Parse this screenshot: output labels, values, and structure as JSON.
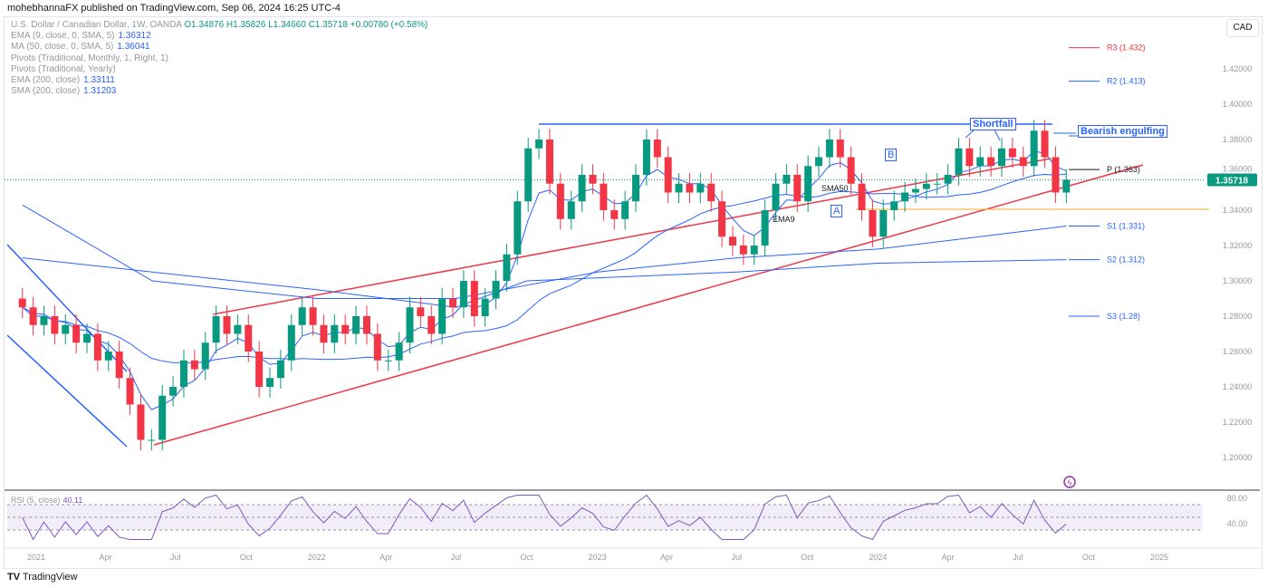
{
  "header": "mohebhannaFX published on TradingView.com, Sep 06, 2024 16:25 UTC-4",
  "legend": {
    "symbol": "U.S. Dollar / Canadian Dollar, 1W, OANDA",
    "ohlc": {
      "o": "O1.34876",
      "h": "H1.35826",
      "l": "L1.34660",
      "c": "C1.35718",
      "chg": "+0.00780 (+0.58%)"
    },
    "indicators": [
      {
        "name": "EMA (9, close, 0, SMA, 5)",
        "value": "1.36312"
      },
      {
        "name": "MA (50, close, 0, SMA, 5)",
        "value": "1.36041"
      },
      {
        "name": "Pivots (Traditional, Monthly, 1, Right, 1)",
        "value": ""
      },
      {
        "name": "Pivots (Traditional, Yearly)",
        "value": ""
      },
      {
        "name": "EMA (200, close)",
        "value": "1.33111"
      },
      {
        "name": "SMA (200, close)",
        "value": "1.31203"
      }
    ]
  },
  "currency": "CAD",
  "current_price": "1.35718",
  "pivots": [
    {
      "label": "R3 (1.432)",
      "value": 1.432,
      "color": "#f23645"
    },
    {
      "label": "R2 (1.413)",
      "value": 1.413,
      "color": "#2962ff"
    },
    {
      "label": "P (1.363)",
      "value": 1.363,
      "color": "#131722"
    },
    {
      "label": "S1 (1.331)",
      "value": 1.331,
      "color": "#2962ff"
    },
    {
      "label": "S2 (1.312)",
      "value": 1.312,
      "color": "#2962ff"
    },
    {
      "label": "S3 (1.28)",
      "value": 1.28,
      "color": "#2962ff"
    }
  ],
  "annotations": {
    "shortfall": "Shortfall",
    "bearish": "Bearish engulfing",
    "a": "A",
    "b": "B",
    "sma50": "SMA50",
    "ema9": "EMA9"
  },
  "rsi": {
    "label": "RSI (5, close)",
    "value": "40.11",
    "ticks": [
      "80.00",
      "40.00"
    ]
  },
  "footer": "TradingView",
  "colors": {
    "up": "#089981",
    "down": "#f23645",
    "ma": "#2962ff",
    "trend": "#f23645",
    "rsi": "#7e57c2"
  },
  "chart_data": {
    "type": "candlestick",
    "ylim": [
      1.19,
      1.44
    ],
    "y_ticks": [
      "1.42000",
      "1.40000",
      "1.38000",
      "1.36000",
      "1.34000",
      "1.32000",
      "1.30000",
      "1.28000",
      "1.26000",
      "1.24000",
      "1.22000",
      "1.20000"
    ],
    "x_ticks": [
      "2021",
      "Apr",
      "Jul",
      "Oct",
      "2022",
      "Apr",
      "Jul",
      "Oct",
      "2023",
      "Apr",
      "Jul",
      "Oct",
      "2024",
      "Apr",
      "Jul",
      "Oct",
      "2025"
    ],
    "x_tick_dates": [
      "2021-01-01",
      "2021-04-01",
      "2021-07-01",
      "2021-10-01",
      "2022-01-01",
      "2022-04-01",
      "2022-07-01",
      "2022-10-01",
      "2023-01-01",
      "2023-04-01",
      "2023-07-01",
      "2023-10-01",
      "2024-01-01",
      "2024-04-01",
      "2024-07-01",
      "2024-10-01",
      "2025-01-01"
    ],
    "dates": [
      "2020-12-14",
      "2020-12-28",
      "2021-01-11",
      "2021-01-25",
      "2021-02-08",
      "2021-02-22",
      "2021-03-08",
      "2021-03-22",
      "2021-04-05",
      "2021-04-19",
      "2021-05-03",
      "2021-05-17",
      "2021-05-31",
      "2021-06-14",
      "2021-06-28",
      "2021-07-12",
      "2021-07-26",
      "2021-08-09",
      "2021-08-23",
      "2021-09-06",
      "2021-09-20",
      "2021-10-04",
      "2021-10-18",
      "2021-11-01",
      "2021-11-15",
      "2021-11-29",
      "2021-12-13",
      "2021-12-27",
      "2022-01-10",
      "2022-01-24",
      "2022-02-07",
      "2022-02-21",
      "2022-03-07",
      "2022-03-21",
      "2022-04-04",
      "2022-04-18",
      "2022-05-02",
      "2022-05-16",
      "2022-05-30",
      "2022-06-13",
      "2022-06-27",
      "2022-07-11",
      "2022-07-25",
      "2022-08-08",
      "2022-08-22",
      "2022-09-05",
      "2022-09-19",
      "2022-10-03",
      "2022-10-17",
      "2022-10-31",
      "2022-11-14",
      "2022-11-28",
      "2022-12-12",
      "2022-12-26",
      "2023-01-09",
      "2023-01-23",
      "2023-02-06",
      "2023-02-20",
      "2023-03-06",
      "2023-03-20",
      "2023-04-03",
      "2023-04-17",
      "2023-05-01",
      "2023-05-15",
      "2023-05-29",
      "2023-06-12",
      "2023-06-26",
      "2023-07-10",
      "2023-07-24",
      "2023-08-07",
      "2023-08-21",
      "2023-09-04",
      "2023-09-18",
      "2023-10-02",
      "2023-10-16",
      "2023-10-30",
      "2023-11-13",
      "2023-11-27",
      "2023-12-11",
      "2023-12-25",
      "2024-01-08",
      "2024-01-22",
      "2024-02-05",
      "2024-02-19",
      "2024-03-04",
      "2024-03-18",
      "2024-04-01",
      "2024-04-15",
      "2024-04-29",
      "2024-05-13",
      "2024-05-27",
      "2024-06-10",
      "2024-06-24",
      "2024-07-08",
      "2024-07-22",
      "2024-08-05",
      "2024-08-19",
      "2024-09-02"
    ],
    "close": [
      1.285,
      1.275,
      1.28,
      1.27,
      1.275,
      1.265,
      1.27,
      1.255,
      1.26,
      1.245,
      1.23,
      1.21,
      1.21,
      1.235,
      1.24,
      1.255,
      1.25,
      1.265,
      1.28,
      1.27,
      1.275,
      1.26,
      1.24,
      1.245,
      1.255,
      1.275,
      1.285,
      1.275,
      1.265,
      1.275,
      1.27,
      1.28,
      1.27,
      1.255,
      1.255,
      1.265,
      1.285,
      1.28,
      1.27,
      1.29,
      1.285,
      1.3,
      1.28,
      1.29,
      1.3,
      1.315,
      1.345,
      1.375,
      1.38,
      1.355,
      1.335,
      1.345,
      1.36,
      1.355,
      1.34,
      1.335,
      1.345,
      1.36,
      1.38,
      1.37,
      1.35,
      1.355,
      1.35,
      1.355,
      1.345,
      1.325,
      1.32,
      1.315,
      1.32,
      1.34,
      1.355,
      1.36,
      1.345,
      1.365,
      1.37,
      1.38,
      1.37,
      1.355,
      1.34,
      1.325,
      1.34,
      1.345,
      1.35,
      1.352,
      1.355,
      1.355,
      1.36,
      1.375,
      1.365,
      1.37,
      1.365,
      1.375,
      1.37,
      1.365,
      1.385,
      1.37,
      1.35,
      1.35718
    ],
    "ema200": {
      "dates": [
        "2020-12-14",
        "2021-06-01",
        "2022-01-01",
        "2022-07-01",
        "2023-01-01",
        "2023-07-01",
        "2024-01-01",
        "2024-09-02"
      ],
      "values": [
        1.343,
        1.3,
        1.29,
        1.29,
        1.305,
        1.313,
        1.318,
        1.331
      ]
    },
    "sma200": {
      "dates": [
        "2020-12-14",
        "2021-06-01",
        "2022-01-01",
        "2022-07-01",
        "2022-10-01",
        "2023-07-01",
        "2024-01-01",
        "2024-09-02"
      ],
      "values": [
        1.313,
        1.305,
        1.295,
        1.285,
        1.3,
        1.305,
        1.31,
        1.312
      ]
    },
    "rsi_levels": [
      70,
      50,
      30
    ]
  }
}
